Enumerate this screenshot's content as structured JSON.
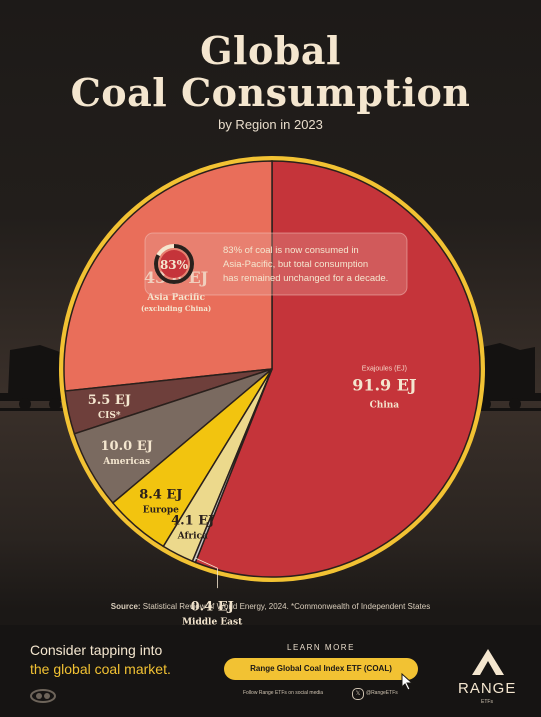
{
  "title_line1": "Global",
  "title_line2": "Coal Consumption",
  "subtitle": "by Region in 2023",
  "callout_pct": "83%",
  "callout_text": [
    "83% of coal is now consumed in",
    "Asia-Pacific, but total consumption",
    "has remained unchanged for a decade."
  ],
  "unit_label": "Exajoules (EJ)",
  "source_label": "Source:",
  "source_text": "Statistical Review of World Energy, 2024. *Commonwealth of Independent States",
  "cta_line1": "Consider tapping into",
  "cta_line2": "the global coal market.",
  "learn_more": "LEARN MORE",
  "etf_button": "Range Global Coal Index ETF (COAL)",
  "social_text": "Follow Range ETFs on social media",
  "social_handle": "@RangeETFs",
  "brand": "RANGE",
  "brand_sub": "ETFs",
  "icons": [
    "x-logo-icon",
    "cursor-icon",
    "range-mountain-icon",
    "visual-capitalist-icon"
  ],
  "colors": {
    "china": "#c5343a",
    "asia_pacific": "#e96e5a",
    "cis": "#6e3f3b",
    "americas": "#7a6a60",
    "europe": "#f2c40f",
    "africa": "#ecd98c",
    "middle_east": "#c9c9c9",
    "ring": "#f2c233"
  },
  "chart_data": {
    "type": "pie",
    "title": "Global Coal Consumption",
    "subtitle": "by Region in 2023",
    "unit": "Exajoules (EJ)",
    "slices": [
      {
        "label": "China",
        "value": 91.9,
        "value_text": "91.9 EJ"
      },
      {
        "label": "Asia Pacific",
        "sublabel": "(excluding China)",
        "value": 43.8,
        "value_text": "43.8 EJ"
      },
      {
        "label": "CIS*",
        "value": 5.5,
        "value_text": "5.5 EJ"
      },
      {
        "label": "Americas",
        "value": 10.0,
        "value_text": "10.0 EJ"
      },
      {
        "label": "Europe",
        "value": 8.4,
        "value_text": "8.4 EJ"
      },
      {
        "label": "Africa",
        "value": 4.1,
        "value_text": "4.1 EJ"
      },
      {
        "label": "Middle East",
        "value": 0.4,
        "value_text": "0.4 EJ"
      }
    ],
    "annotation": "83%"
  }
}
